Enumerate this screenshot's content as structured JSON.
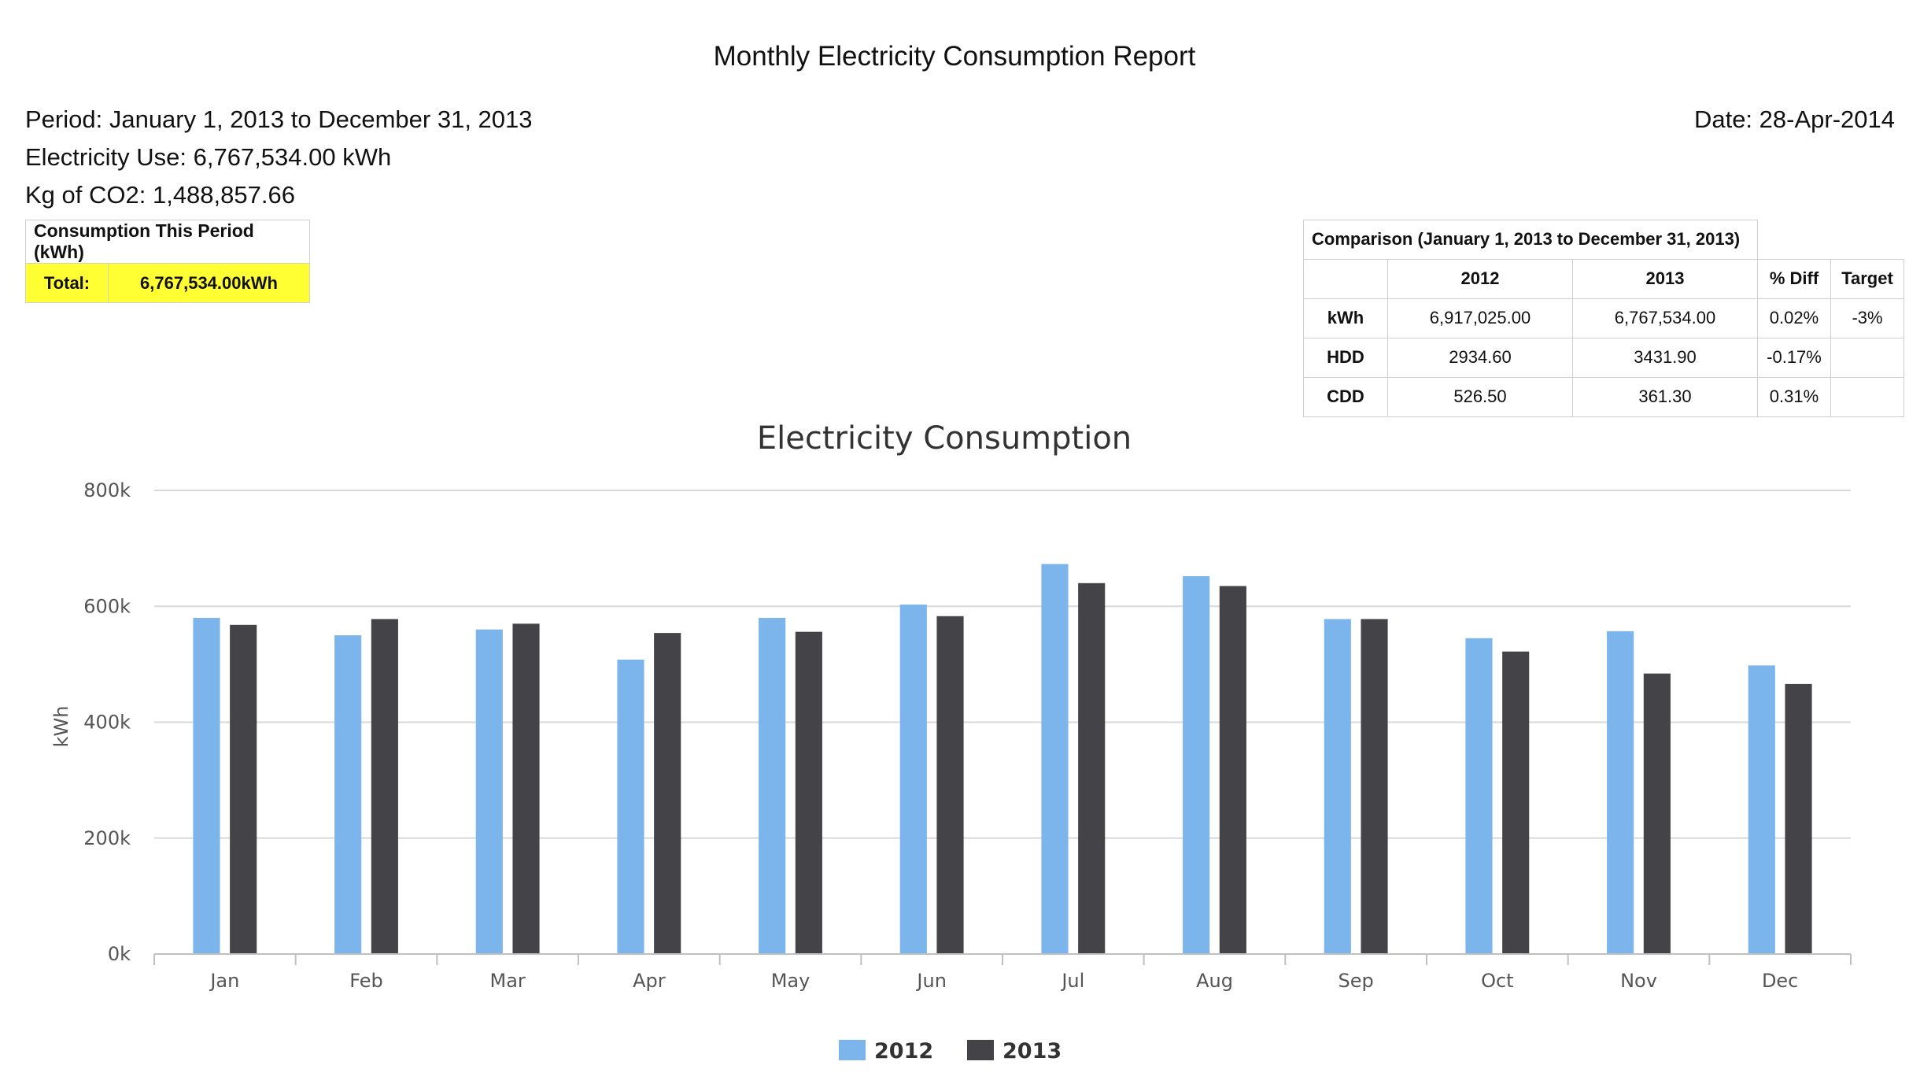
{
  "report": {
    "title": "Monthly Electricity Consumption Report",
    "period": "Period: January 1, 2013 to December 31, 2013",
    "electricity_use": "Electricity Use: 6,767,534.00 kWh",
    "co2": "Kg of CO2: 1,488,857.66",
    "date": "Date: 28-Apr-2014"
  },
  "consumption_table": {
    "header": "Consumption This Period (kWh)",
    "total_label": "Total:",
    "total_value": "6,767,534.00kWh"
  },
  "comparison_table": {
    "caption": "Comparison (January 1, 2013 to December 31, 2013)",
    "columns": [
      "2012",
      "2013",
      "% Diff",
      "Target"
    ],
    "rows": [
      {
        "label": "kWh",
        "cells": [
          "6,917,025.00",
          "6,767,534.00",
          "0.02%",
          "-3%"
        ]
      },
      {
        "label": "HDD",
        "cells": [
          "2934.60",
          "3431.90",
          "-0.17%",
          ""
        ]
      },
      {
        "label": "CDD",
        "cells": [
          "526.50",
          "361.30",
          "0.31%",
          ""
        ]
      }
    ]
  },
  "colors": {
    "series_2012": "#7cb5ec",
    "series_2013": "#434348",
    "gridline": "#d8d8d8",
    "highlight": "#ffff33"
  },
  "chart_data": {
    "type": "bar",
    "title": "Electricity Consumption",
    "xlabel": "",
    "ylabel": "kWh",
    "ylim": [
      0,
      800000
    ],
    "yticks": [
      0,
      200000,
      400000,
      600000,
      800000
    ],
    "ytick_labels": [
      "0k",
      "200k",
      "400k",
      "600k",
      "800k"
    ],
    "grid": true,
    "legend_position": "bottom-center",
    "categories": [
      "Jan",
      "Feb",
      "Mar",
      "Apr",
      "May",
      "Jun",
      "Jul",
      "Aug",
      "Sep",
      "Oct",
      "Nov",
      "Dec"
    ],
    "series": [
      {
        "name": "2012",
        "values": [
          580000,
          550000,
          560000,
          508000,
          580000,
          603000,
          673000,
          652000,
          578000,
          545000,
          557000,
          498000
        ]
      },
      {
        "name": "2013",
        "values": [
          568000,
          578000,
          570000,
          554000,
          556000,
          583000,
          640000,
          635000,
          578000,
          522000,
          484000,
          466000
        ]
      }
    ]
  }
}
